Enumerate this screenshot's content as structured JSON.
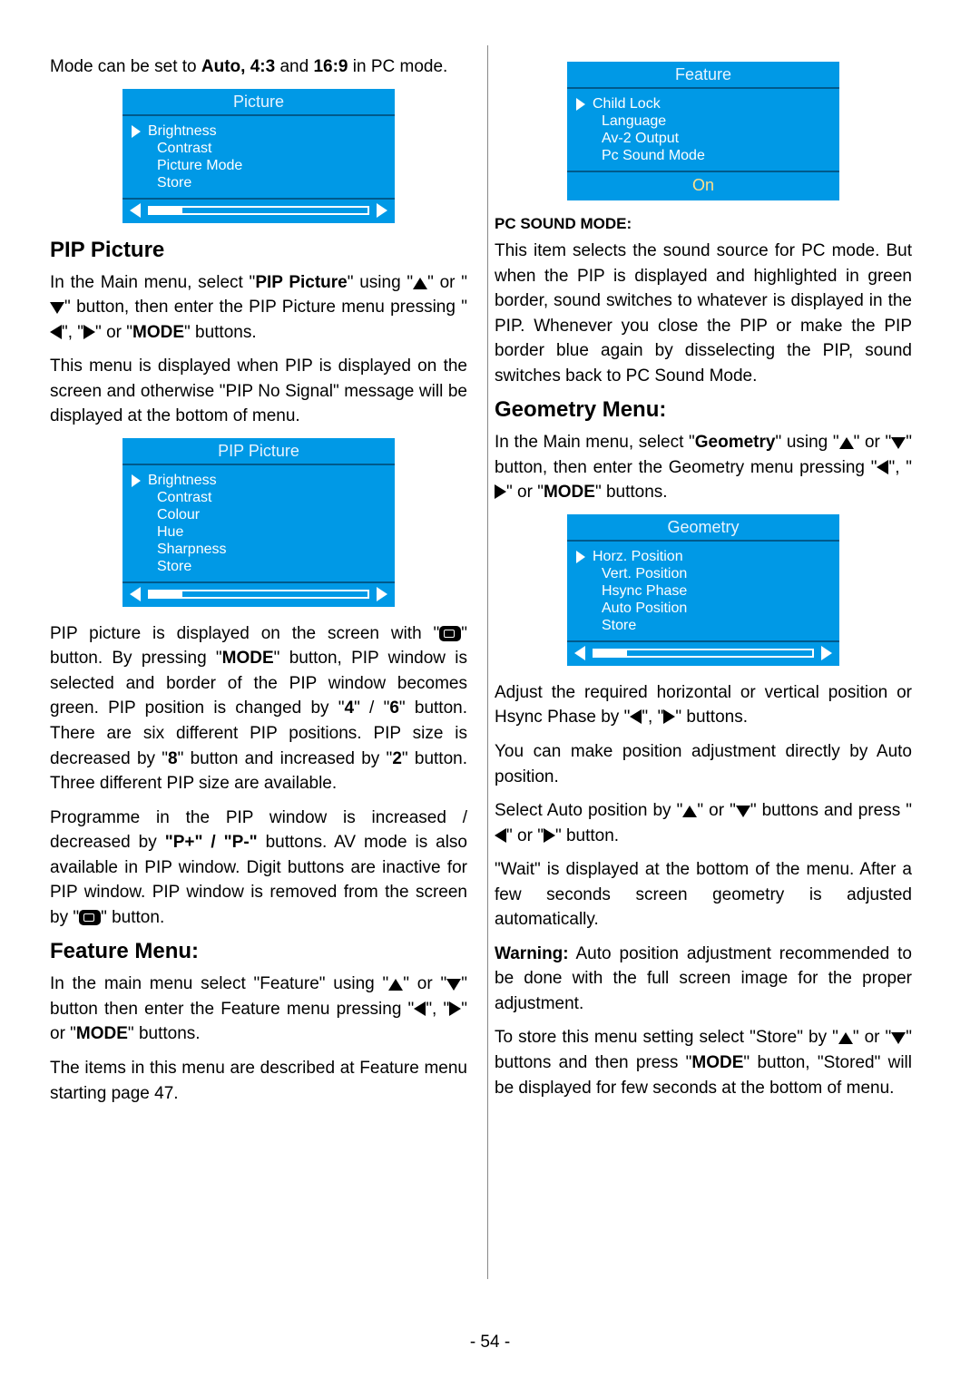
{
  "page_number": "- 54 -",
  "left": {
    "intro": {
      "pre": "Mode can be set to ",
      "b1": "Auto, 4:3",
      "mid": " and ",
      "b2": "16:9",
      "post": " in PC mode."
    },
    "osd_picture": {
      "title": "Picture",
      "items": [
        "Brightness",
        "Contrast",
        "Picture Mode",
        "Store"
      ],
      "bg": "#0099e6"
    },
    "h_pip": "PIP Picture",
    "pip_p1": {
      "t1": "In the Main menu, select \"",
      "b1": "PIP Picture",
      "t2": "\" using \"",
      "t3": "\" or \"",
      "t4": "\" button, then enter the PIP Picture menu pressing \"",
      "t5": "\", \"",
      "t6": "\" or \"",
      "b2": "MODE",
      "t7": "\" buttons."
    },
    "pip_p2": "This menu is displayed when PIP is displayed on the screen and otherwise \"PIP No Signal\" message will be displayed at the bottom of menu.",
    "osd_pip": {
      "title": "PIP Picture",
      "items": [
        "Brightness",
        "Contrast",
        "Colour",
        "Hue",
        "Sharpness",
        "Store"
      ]
    },
    "pip_p3": {
      "t1": "PIP picture is displayed on the screen with \"",
      "t2": "\" button. By pressing \"",
      "b1": "MODE",
      "t3": "\" button, PIP window is selected and border of the PIP window becomes green. PIP position is changed by \"",
      "b2": "4",
      "t4": "\" / \"",
      "b3": "6",
      "t5": "\" button. There are six different PIP positions. PIP size is decreased by \"",
      "b4": "8",
      "t6": "\" button and increased by \"",
      "b5": "2",
      "t7": "\" button. Three different PIP size are available."
    },
    "pip_p4": {
      "t1": "Programme in the PIP window is increased / decreased by ",
      "b1": "\"P+\" / \"P-\"",
      "t2": " buttons. AV mode is also available in PIP window. Digit buttons are inactive for PIP window. PIP window is removed from the screen by \"",
      "t3": "\" button."
    },
    "h_feature": "Feature Menu:",
    "feat_p1": {
      "t1": "In the main menu select \"Feature\" using \"",
      "t2": "\" or \"",
      "t3": "\" button then enter the Feature menu pressing \"",
      "t4": "\", \"",
      "t5": "\" or \"",
      "b1": "MODE",
      "t6": "\" buttons."
    },
    "feat_p2": "The items in this menu are described at Feature menu starting page 47."
  },
  "right": {
    "osd_feature": {
      "title": "Feature",
      "items": [
        "Child Lock",
        "Language",
        "Av-2 Output",
        "Pc Sound Mode"
      ],
      "value": "On"
    },
    "sub_pcsm": "PC SOUND MODE:",
    "pcsm_p": "This item selects the sound source for PC mode. But when the PIP is displayed and highlighted in green border, sound switches to whatever is displayed in the PIP. Whenever you close the PIP or make the PIP border blue again by disselecting the PIP, sound switches back to PC Sound Mode.",
    "h_geom": "Geometry Menu:",
    "geom_p1": {
      "t1": "In the Main menu, select \"",
      "b1": "Geometry",
      "t2": "\" using \"",
      "t3": "\" or \"",
      "t4": "\" button, then enter the Geometry menu pressing \"",
      "t5": "\", \"",
      "t6": "\" or \"",
      "b2": "MODE",
      "t7": "\" buttons."
    },
    "osd_geom": {
      "title": "Geometry",
      "items": [
        "Horz. Position",
        "Vert. Position",
        "Hsync Phase",
        "Auto Position",
        "Store"
      ]
    },
    "geom_p2": {
      "t1": "Adjust the required horizontal or vertical position or Hsync Phase by \"",
      "t2": "\", \"",
      "t3": "\" buttons."
    },
    "geom_p3": "You can make position adjustment directly by Auto position.",
    "geom_p4": {
      "t1": "Select Auto position by \"",
      "t2": "\" or \"",
      "t3": "\" buttons and press \"",
      "t4": "\" or \"",
      "t5": "\" button."
    },
    "geom_p5": "\"Wait\" is displayed at the bottom of the menu. After a few seconds screen geometry is adjusted automatically.",
    "geom_p6": {
      "b1": "Warning:",
      "t1": " Auto position adjustment recommended to be done with the full screen image for the proper adjustment."
    },
    "geom_p7": {
      "t1": "To store this menu setting select \"Store\" by \"",
      "t2": "\" or \"",
      "t3": "\" buttons and then press \"",
      "b1": "MODE",
      "t4": "\" button, \"Stored\" will be displayed for few seconds at the bottom of menu."
    }
  }
}
